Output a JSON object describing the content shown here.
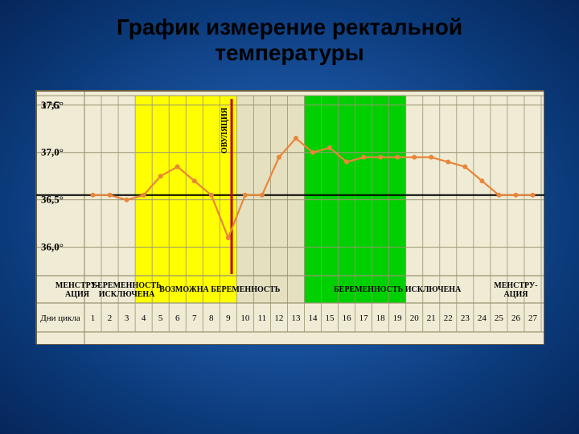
{
  "title_line1": "График измерение ректальной",
  "title_line2": "температуры",
  "chart": {
    "type": "line",
    "background_color": "#f0ebd4",
    "grid_color": "#999573",
    "y_axis": {
      "header": "t °C",
      "ticks": [
        "37,5°",
        "37,0°",
        "36,5°",
        "36,0°"
      ],
      "min": 35.7,
      "max": 37.6
    },
    "x_axis": {
      "label": "Дни цикла",
      "days": [
        1,
        2,
        3,
        4,
        5,
        6,
        7,
        8,
        9,
        10,
        11,
        12,
        13,
        14,
        15,
        16,
        17,
        18,
        19,
        20,
        21,
        22,
        23,
        24,
        25,
        26,
        27
      ]
    },
    "zones": [
      {
        "from": 1,
        "to": 3,
        "color": "#f0ebd4",
        "lighter": true
      },
      {
        "from": 4,
        "to": 9,
        "color": "#ffff00"
      },
      {
        "from": 10,
        "to": 13,
        "color": "#e5e0c0"
      },
      {
        "from": 14,
        "to": 19,
        "color": "#00d000"
      },
      {
        "from": 20,
        "to": 27,
        "color": "#f0ebd4",
        "lighter": true
      }
    ],
    "reference_line": {
      "y": 36.55,
      "color": "#000",
      "width": 2
    },
    "ovulation_line": {
      "day": 9.2,
      "color": "#c00000",
      "width": 3,
      "label": "ОВУЛЯЦИЯ"
    },
    "series": {
      "color": "#e8863a",
      "width": 2.2,
      "marker_size": 3,
      "points": [
        {
          "d": 1,
          "t": 36.55
        },
        {
          "d": 2,
          "t": 36.55
        },
        {
          "d": 3,
          "t": 36.5
        },
        {
          "d": 4,
          "t": 36.55
        },
        {
          "d": 5,
          "t": 36.75
        },
        {
          "d": 6,
          "t": 36.85
        },
        {
          "d": 7,
          "t": 36.7
        },
        {
          "d": 8,
          "t": 36.55
        },
        {
          "d": 9,
          "t": 36.1
        },
        {
          "d": 10,
          "t": 36.55
        },
        {
          "d": 11,
          "t": 36.55
        },
        {
          "d": 12,
          "t": 36.95
        },
        {
          "d": 13,
          "t": 37.15
        },
        {
          "d": 14,
          "t": 37.0
        },
        {
          "d": 15,
          "t": 37.05
        },
        {
          "d": 16,
          "t": 36.9
        },
        {
          "d": 17,
          "t": 36.95
        },
        {
          "d": 18,
          "t": 36.95
        },
        {
          "d": 19,
          "t": 36.95
        },
        {
          "d": 20,
          "t": 36.95
        },
        {
          "d": 21,
          "t": 36.95
        },
        {
          "d": 22,
          "t": 36.9
        },
        {
          "d": 23,
          "t": 36.85
        },
        {
          "d": 24,
          "t": 36.7
        },
        {
          "d": 25,
          "t": 36.55
        },
        {
          "d": 26,
          "t": 36.55
        },
        {
          "d": 27,
          "t": 36.55
        }
      ]
    },
    "phases_row_labels": [
      {
        "text": "МЕНСТРУ-\nАЦИЯ",
        "from": 0,
        "to": 2
      },
      {
        "text": "БЕРЕМЕННОСТЬ\nИСКЛЮЧЕНА",
        "from": 2,
        "to": 4
      },
      {
        "text": "ВОЗМОЖНА  БЕРЕМЕННОСТЬ",
        "from": 4,
        "to": 13
      },
      {
        "text": "БЕРЕМЕННОСТЬ ИСКЛЮЧЕНА",
        "from": 14,
        "to": 24
      },
      {
        "text": "МЕНСТРУ-\nАЦИЯ",
        "from": 25,
        "to": 27
      }
    ]
  }
}
